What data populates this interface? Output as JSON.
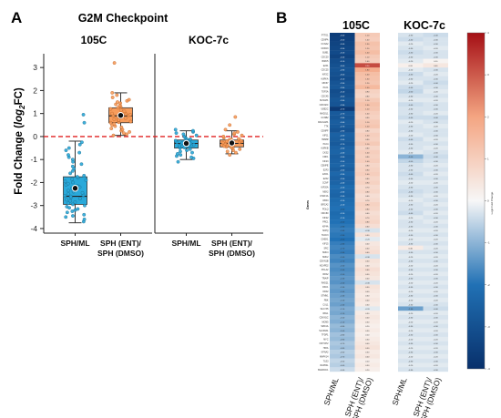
{
  "colors": {
    "blue": "#29A9DA",
    "blue_edge": "#1b6f93",
    "orange": "#F79C5B",
    "orange_edge": "#c56a2c",
    "zero_line": "#e02020",
    "mean_marker": "#111111",
    "heat_low": "#08306b",
    "heat_mid": "#f7f7f7",
    "heat_high": "#a50f15"
  },
  "chart_data": [
    {
      "type": "box",
      "panel": "A",
      "title": "G2M Checkpoint",
      "ylabel_prefix": "Fold Change (",
      "ylabel_math": "log",
      "ylabel_sub": "2",
      "ylabel_suffix": "FC)",
      "ylim": [
        -4.2,
        3.6
      ],
      "yticks": [
        -4,
        -3,
        -2,
        -1,
        0,
        1,
        2,
        3
      ],
      "reference_line": 0,
      "facets": [
        {
          "name": "105C",
          "groups": [
            {
              "label_lines": [
                "SPH/ML"
              ],
              "color": "blue",
              "whisker_low": -3.75,
              "q1": -2.95,
              "median": -2.6,
              "q3": -1.75,
              "whisker_high": -0.2,
              "mean": -2.25,
              "points": [
                -3.7,
                -3.6,
                -3.5,
                -3.45,
                -3.4,
                -3.3,
                -3.25,
                -3.2,
                -3.15,
                -3.1,
                -3.05,
                -3.0,
                -2.95,
                -2.9,
                -2.85,
                -2.8,
                -2.75,
                -2.7,
                -2.65,
                -2.6,
                -2.58,
                -2.55,
                -2.5,
                -2.45,
                -2.4,
                -2.35,
                -2.3,
                -2.25,
                -2.2,
                -2.15,
                -2.1,
                -2.05,
                -2.0,
                -1.95,
                -1.9,
                -1.85,
                -1.8,
                -1.75,
                -1.7,
                -1.6,
                -1.5,
                -1.4,
                -1.3,
                -1.2,
                -1.1,
                -1.0,
                -0.9,
                -0.8,
                -0.7,
                -0.6,
                -0.5,
                -0.35,
                -0.25,
                0.6,
                0.95
              ]
            },
            {
              "label_lines": [
                "SPH (ENT)/",
                "SPH (DMSO)"
              ],
              "color": "orange",
              "whisker_low": 0.05,
              "q1": 0.6,
              "median": 0.9,
              "q3": 1.25,
              "whisker_high": 1.9,
              "mean": 0.92,
              "points": [
                0.05,
                0.1,
                0.15,
                0.2,
                0.25,
                0.3,
                0.35,
                0.4,
                0.45,
                0.5,
                0.55,
                0.6,
                0.62,
                0.65,
                0.7,
                0.72,
                0.75,
                0.8,
                0.82,
                0.85,
                0.88,
                0.9,
                0.92,
                0.95,
                0.98,
                1.0,
                1.05,
                1.1,
                1.15,
                1.2,
                1.25,
                1.3,
                1.35,
                1.4,
                1.45,
                1.5,
                1.55,
                1.6,
                1.7,
                1.8,
                1.9,
                3.2
              ]
            }
          ]
        },
        {
          "name": "KOC-7c",
          "groups": [
            {
              "label_lines": [
                "SPH/ML"
              ],
              "color": "blue",
              "whisker_low": -1.0,
              "q1": -0.5,
              "median": -0.3,
              "q3": -0.15,
              "whisker_high": 0.25,
              "mean": -0.3,
              "points": [
                -1.1,
                -0.95,
                -0.9,
                -0.85,
                -0.8,
                -0.75,
                -0.7,
                -0.65,
                -0.6,
                -0.55,
                -0.5,
                -0.48,
                -0.45,
                -0.42,
                -0.4,
                -0.38,
                -0.35,
                -0.33,
                -0.3,
                -0.28,
                -0.25,
                -0.22,
                -0.2,
                -0.18,
                -0.15,
                -0.12,
                -0.1,
                -0.05,
                0.0,
                0.05,
                0.1,
                0.15,
                0.2,
                0.25,
                0.3
              ]
            },
            {
              "label_lines": [
                "SPH (ENT)/",
                "SPH (DMSO)"
              ],
              "color": "orange",
              "whisker_low": -0.75,
              "q1": -0.45,
              "median": -0.3,
              "q3": -0.15,
              "whisker_high": 0.25,
              "mean": -0.28,
              "points": [
                -0.8,
                -0.7,
                -0.65,
                -0.6,
                -0.55,
                -0.5,
                -0.48,
                -0.45,
                -0.42,
                -0.4,
                -0.38,
                -0.35,
                -0.32,
                -0.3,
                -0.28,
                -0.25,
                -0.22,
                -0.2,
                -0.18,
                -0.15,
                -0.12,
                -0.1,
                -0.05,
                0.0,
                0.05,
                0.1,
                0.15,
                0.2,
                0.3,
                0.5,
                0.85
              ]
            }
          ]
        }
      ]
    },
    {
      "type": "heatmap",
      "panel": "B",
      "facets": [
        "105C",
        "KOC-7c"
      ],
      "columns": [
        {
          "label_lines": [
            "SPH/ML"
          ]
        },
        {
          "label_lines": [
            "SPH (ENT)/",
            "SPH (DMSO)"
          ]
        },
        {
          "label_lines": [
            "SPH/ML"
          ]
        },
        {
          "label_lines": [
            "SPH (ENT)/",
            "SPH (DMSO)"
          ]
        }
      ],
      "y_axis_label": "Genes",
      "colorbar_label": "Log2 Fold Change",
      "color_range": [
        -4,
        4
      ],
      "colorbar_ticks": [
        -4,
        -3,
        -2,
        -1,
        0,
        1,
        2,
        3,
        4
      ],
      "rows": [
        {
          "gene": "PTTG1",
          "values": [
            -3.6,
            1.1,
            -0.3,
            -0.4
          ]
        },
        {
          "gene": "CENPA",
          "values": [
            -3.5,
            1.0,
            -0.4,
            -0.3
          ]
        },
        {
          "gene": "CCNA2",
          "values": [
            -3.4,
            1.3,
            -0.2,
            -0.3
          ]
        },
        {
          "gene": "CDKN3",
          "values": [
            -3.3,
            1.2,
            -0.3,
            -0.2
          ]
        },
        {
          "gene": "BUB1",
          "values": [
            -3.2,
            1.4,
            -0.4,
            -0.3
          ]
        },
        {
          "gene": "CDC20",
          "values": [
            -3.4,
            1.1,
            -0.3,
            -0.3
          ]
        },
        {
          "gene": "BIRC5",
          "values": [
            -3.1,
            1.0,
            -0.2,
            0.1
          ]
        },
        {
          "gene": "E2F1",
          "values": [
            -3.0,
            3.2,
            0.2,
            0.4
          ]
        },
        {
          "gene": "CDC25",
          "values": [
            -2.9,
            1.8,
            -0.2,
            -0.3
          ]
        },
        {
          "gene": "KIF2C",
          "values": [
            -3.0,
            1.4,
            -0.4,
            -0.2
          ]
        },
        {
          "gene": "AURKA",
          "values": [
            -3.1,
            1.3,
            -0.3,
            -0.3
          ]
        },
        {
          "gene": "MKI67",
          "values": [
            -2.9,
            1.2,
            -0.2,
            -0.4
          ]
        },
        {
          "gene": "PLK1",
          "values": [
            -2.8,
            1.5,
            -0.4,
            -0.3
          ]
        },
        {
          "gene": "TOP2A",
          "values": [
            -3.1,
            0.9,
            -0.5,
            -0.2
          ]
        },
        {
          "gene": "CDC45",
          "values": [
            -3.0,
            0.8,
            -0.3,
            -0.3
          ]
        },
        {
          "gene": "NUSAP1",
          "values": [
            -2.8,
            1.1,
            -0.2,
            -0.2
          ]
        },
        {
          "gene": "CDKN2C",
          "values": [
            -2.9,
            1.3,
            -0.4,
            -0.3
          ]
        },
        {
          "gene": "UBE2C",
          "values": [
            -3.7,
            1.2,
            -0.3,
            -0.3
          ]
        },
        {
          "gene": "MAD2L1",
          "values": [
            -2.7,
            1.0,
            -0.3,
            -0.2
          ]
        },
        {
          "gene": "CCNB2",
          "values": [
            -2.8,
            0.9,
            -0.4,
            -0.4
          ]
        },
        {
          "gene": "RACGAP1",
          "values": [
            -2.6,
            1.1,
            -0.2,
            -0.3
          ]
        },
        {
          "gene": "TTK",
          "values": [
            -2.7,
            1.2,
            -0.3,
            -0.2
          ]
        },
        {
          "gene": "CENPF",
          "values": [
            -2.9,
            0.8,
            -0.3,
            -0.3
          ]
        },
        {
          "gene": "KIF11",
          "values": [
            -2.5,
            1.0,
            -0.2,
            -0.3
          ]
        },
        {
          "gene": "HMMR",
          "values": [
            -2.6,
            0.9,
            -0.4,
            -0.2
          ]
        },
        {
          "gene": "PLK4",
          "values": [
            -2.7,
            1.1,
            -0.3,
            -0.3
          ]
        },
        {
          "gene": "AURKB",
          "values": [
            -2.5,
            0.8,
            -0.3,
            -0.2
          ]
        },
        {
          "gene": "CKS2",
          "values": [
            -2.4,
            1.0,
            -0.2,
            -0.3
          ]
        },
        {
          "gene": "CDK1",
          "values": [
            -2.6,
            0.9,
            -1.0,
            -0.4
          ]
        },
        {
          "gene": "KIF23",
          "values": [
            -2.5,
            1.0,
            -0.5,
            -0.3
          ]
        },
        {
          "gene": "CENPE",
          "values": [
            -2.4,
            0.8,
            -0.3,
            -0.2
          ]
        },
        {
          "gene": "E2F3",
          "values": [
            -2.6,
            0.9,
            -0.3,
            -0.3
          ]
        },
        {
          "gene": "EXO1",
          "values": [
            -2.3,
            1.0,
            -0.4,
            -0.2
          ]
        },
        {
          "gene": "E2F2",
          "values": [
            -2.5,
            0.8,
            -0.3,
            -0.3
          ]
        },
        {
          "gene": "CCNF",
          "values": [
            -2.4,
            0.9,
            -0.2,
            -0.2
          ]
        },
        {
          "gene": "KIF20A",
          "values": [
            -2.2,
            0.7,
            -0.3,
            -0.3
          ]
        },
        {
          "gene": "NEK2",
          "values": [
            -2.3,
            0.8,
            -0.4,
            -0.3
          ]
        },
        {
          "gene": "CHAF1A",
          "values": [
            -2.4,
            0.6,
            -0.3,
            -0.2
          ]
        },
        {
          "gene": "DBF4",
          "values": [
            -2.2,
            0.7,
            -0.2,
            -0.3
          ]
        },
        {
          "gene": "BRCA2",
          "values": [
            -2.1,
            0.9,
            -0.3,
            -0.2
          ]
        },
        {
          "gene": "POLQ",
          "values": [
            -2.0,
            0.8,
            -0.3,
            -0.3
          ]
        },
        {
          "gene": "NDC80",
          "values": [
            -2.2,
            0.6,
            -0.4,
            -0.2
          ]
        },
        {
          "gene": "KIF22",
          "values": [
            -2.1,
            0.7,
            -0.2,
            -0.3
          ]
        },
        {
          "gene": "PRC1",
          "values": [
            -2.0,
            0.8,
            -0.3,
            -0.2
          ]
        },
        {
          "gene": "KIF4A",
          "values": [
            -1.9,
            0.6,
            -0.3,
            -0.3
          ]
        },
        {
          "gene": "SFPQ",
          "values": [
            -1.8,
            -0.3,
            -0.2,
            -0.2
          ]
        },
        {
          "gene": "TACC3",
          "values": [
            -1.9,
            0.5,
            -0.3,
            -0.3
          ]
        },
        {
          "gene": "CHEK1",
          "values": [
            -2.0,
            -0.2,
            -0.2,
            -0.2
          ]
        },
        {
          "gene": "KIF15",
          "values": [
            -1.8,
            0.4,
            -0.3,
            -0.3
          ]
        },
        {
          "gene": "SRC",
          "values": [
            -1.7,
            0.5,
            0.3,
            -0.2
          ]
        },
        {
          "gene": "SMC4",
          "values": [
            -1.8,
            0.6,
            -0.3,
            -0.3
          ]
        },
        {
          "gene": "SMC2",
          "values": [
            -1.6,
            -0.3,
            -0.2,
            -0.2
          ]
        },
        {
          "gene": "CDKN1B",
          "values": [
            -1.7,
            0.5,
            -0.3,
            -0.3
          ]
        },
        {
          "gene": "NCAPD2",
          "values": [
            -1.5,
            0.4,
            -0.2,
            -0.2
          ]
        },
        {
          "gene": "POLA2",
          "values": [
            -1.6,
            0.6,
            -0.3,
            -0.3
          ]
        },
        {
          "gene": "RPA2",
          "values": [
            -1.5,
            0.5,
            -0.2,
            -0.2
          ]
        },
        {
          "gene": "TRAIP",
          "values": [
            -1.4,
            0.4,
            -0.3,
            -0.3
          ]
        },
        {
          "gene": "RAD21",
          "values": [
            -1.5,
            -0.3,
            -0.2,
            -0.2
          ]
        },
        {
          "gene": "DKC1",
          "values": [
            -1.3,
            0.5,
            -0.3,
            -0.3
          ]
        },
        {
          "gene": "ODF2",
          "values": [
            -1.4,
            0.4,
            -0.2,
            -0.2
          ]
        },
        {
          "gene": "STMN1",
          "values": [
            -1.3,
            0.3,
            -0.3,
            -0.3
          ]
        },
        {
          "gene": "PBK",
          "values": [
            -1.2,
            0.4,
            -0.2,
            -0.2
          ]
        },
        {
          "gene": "CUL1",
          "values": [
            -1.3,
            0.3,
            -0.3,
            -0.3
          ]
        },
        {
          "gene": "SLC7A5",
          "values": [
            -1.1,
            -0.2,
            -1.3,
            -0.4
          ]
        },
        {
          "gene": "RBL1",
          "values": [
            -1.2,
            0.3,
            -0.2,
            -0.2
          ]
        },
        {
          "gene": "CDKN1C",
          "values": [
            -1.0,
            0.4,
            -0.3,
            -0.3
          ]
        },
        {
          "gene": "MCM5",
          "values": [
            -1.1,
            0.3,
            -0.2,
            -0.2
          ]
        },
        {
          "gene": "SMC1A",
          "values": [
            -0.9,
            0.2,
            -0.3,
            -0.3
          ]
        },
        {
          "gene": "SLC38A1",
          "values": [
            -1.0,
            0.3,
            -0.2,
            -0.2
          ]
        },
        {
          "gene": "TFDP1",
          "values": [
            -0.8,
            0.2,
            -0.3,
            -0.3
          ]
        },
        {
          "gene": "MYC",
          "values": [
            -0.9,
            0.3,
            -0.2,
            -0.2
          ]
        },
        {
          "gene": "NOTCH2",
          "values": [
            -0.7,
            0.4,
            -0.3,
            -0.3
          ]
        },
        {
          "gene": "HIRA",
          "values": [
            -0.8,
            0.5,
            -0.2,
            -0.2
          ]
        },
        {
          "gene": "KPNA2",
          "values": [
            -0.6,
            0.3,
            -0.3,
            -0.3
          ]
        },
        {
          "gene": "MAPK14",
          "values": [
            -0.7,
            0.4,
            -0.2,
            -0.2
          ]
        },
        {
          "gene": "TLE3",
          "values": [
            -0.5,
            0.2,
            -0.3,
            -0.3
          ]
        },
        {
          "gene": "RAD54L",
          "values": [
            -0.6,
            0.3,
            -0.2,
            -0.2
          ]
        },
        {
          "gene": "SMARCC1",
          "values": [
            -0.4,
            0.2,
            -0.3,
            -0.3
          ]
        }
      ]
    }
  ],
  "panel_labels": {
    "a": "A",
    "b": "B"
  }
}
